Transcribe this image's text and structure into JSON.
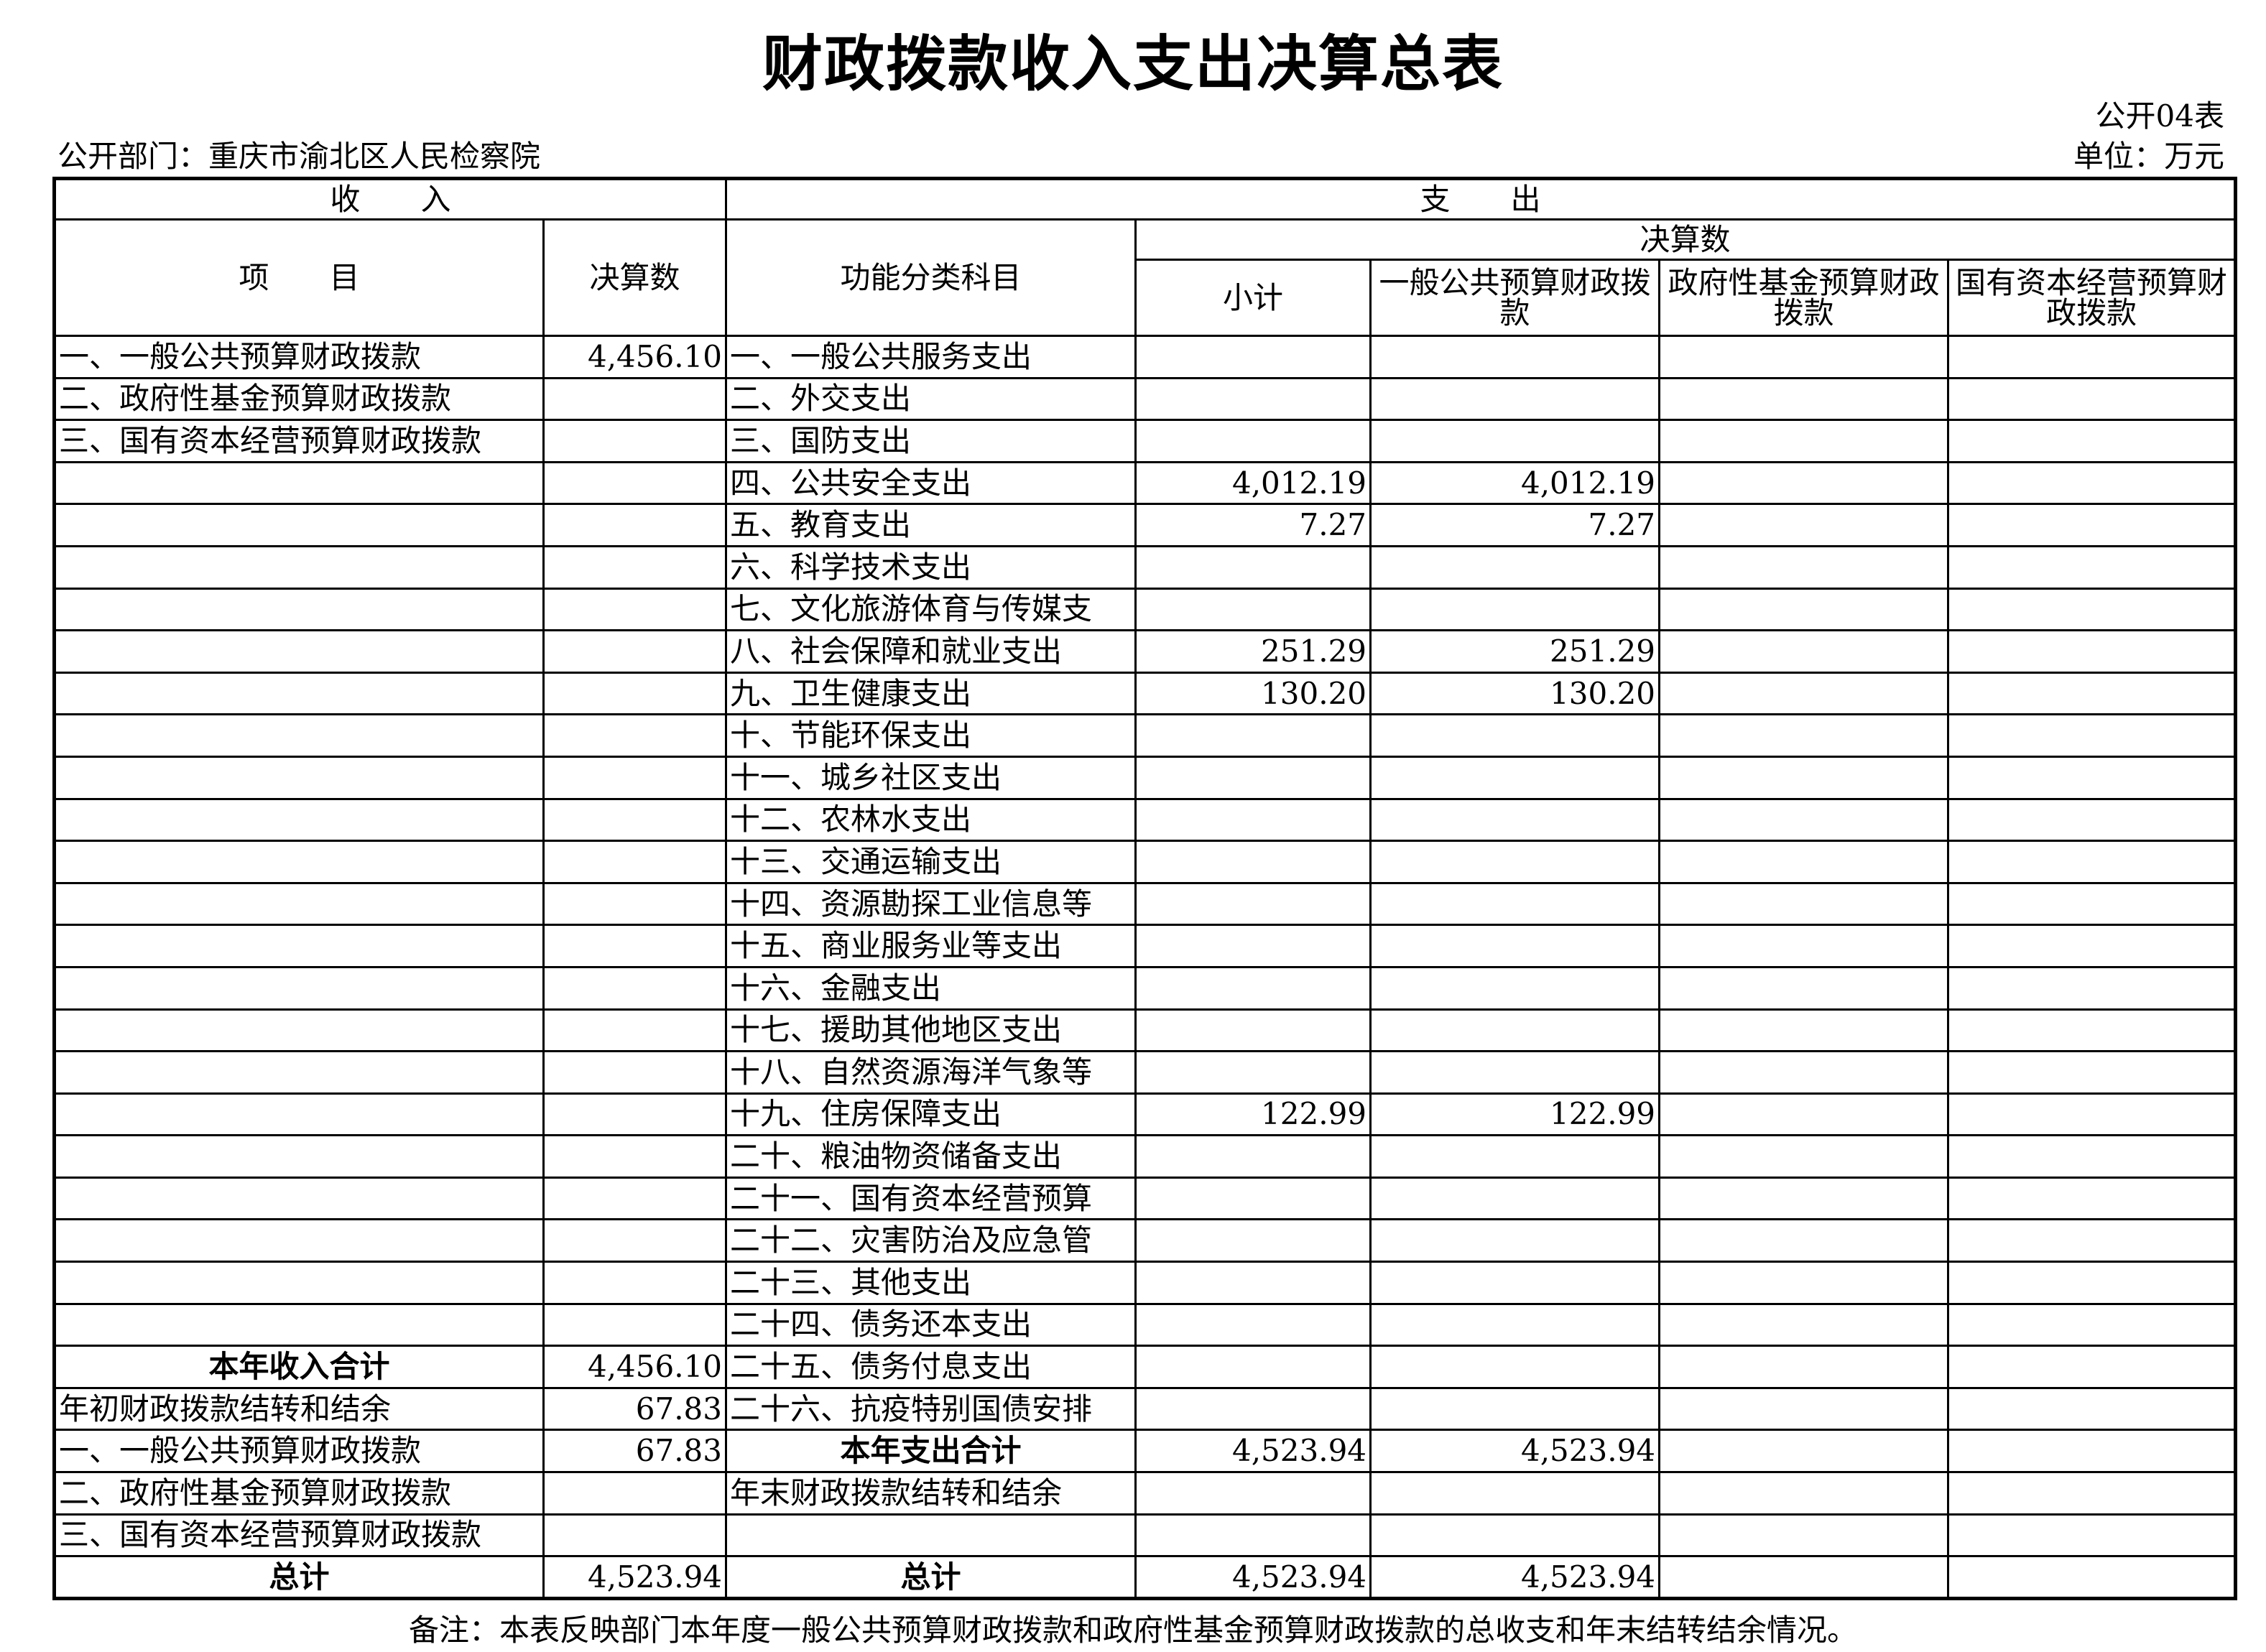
{
  "title": "财政拨款收入支出决算总表",
  "table_no": "公开04表",
  "department": "公开部门：重庆市渝北区人民检察院",
  "unit": "单位：万元",
  "header": {
    "income": "收　　入",
    "expense": "支　　出",
    "item": "项　　目",
    "amount": "决算数",
    "function_category": "功能分类科目",
    "final_amount": "决算数",
    "subtotal": "小计",
    "general_budget": "一般公共预算财政拨款",
    "gov_fund": "政府性基金预算财政拨款",
    "state_capital": "国有资本经营预算财政拨款"
  },
  "rows": [
    {
      "income_item": "一、一般公共预算财政拨款",
      "income_amount": "4,456.10",
      "expense_item": "一、一般公共服务支出",
      "subtotal": "",
      "general": "",
      "fund": "",
      "state": ""
    },
    {
      "income_item": "二、政府性基金预算财政拨款",
      "income_amount": "",
      "expense_item": "二、外交支出",
      "subtotal": "",
      "general": "",
      "fund": "",
      "state": ""
    },
    {
      "income_item": "三、国有资本经营预算财政拨款",
      "income_amount": "",
      "expense_item": "三、国防支出",
      "subtotal": "",
      "general": "",
      "fund": "",
      "state": ""
    },
    {
      "income_item": "",
      "income_amount": "",
      "expense_item": "四、公共安全支出",
      "subtotal": "4,012.19",
      "general": "4,012.19",
      "fund": "",
      "state": ""
    },
    {
      "income_item": "",
      "income_amount": "",
      "expense_item": "五、教育支出",
      "subtotal": "7.27",
      "general": "7.27",
      "fund": "",
      "state": ""
    },
    {
      "income_item": "",
      "income_amount": "",
      "expense_item": "六、科学技术支出",
      "subtotal": "",
      "general": "",
      "fund": "",
      "state": ""
    },
    {
      "income_item": "",
      "income_amount": "",
      "expense_item": "七、文化旅游体育与传媒支",
      "subtotal": "",
      "general": "",
      "fund": "",
      "state": ""
    },
    {
      "income_item": "",
      "income_amount": "",
      "expense_item": "八、社会保障和就业支出",
      "subtotal": "251.29",
      "general": "251.29",
      "fund": "",
      "state": ""
    },
    {
      "income_item": "",
      "income_amount": "",
      "expense_item": "九、卫生健康支出",
      "subtotal": "130.20",
      "general": "130.20",
      "fund": "",
      "state": ""
    },
    {
      "income_item": "",
      "income_amount": "",
      "expense_item": "十、节能环保支出",
      "subtotal": "",
      "general": "",
      "fund": "",
      "state": ""
    },
    {
      "income_item": "",
      "income_amount": "",
      "expense_item": "十一、城乡社区支出",
      "subtotal": "",
      "general": "",
      "fund": "",
      "state": ""
    },
    {
      "income_item": "",
      "income_amount": "",
      "expense_item": "十二、农林水支出",
      "subtotal": "",
      "general": "",
      "fund": "",
      "state": ""
    },
    {
      "income_item": "",
      "income_amount": "",
      "expense_item": "十三、交通运输支出",
      "subtotal": "",
      "general": "",
      "fund": "",
      "state": ""
    },
    {
      "income_item": "",
      "income_amount": "",
      "expense_item": "十四、资源勘探工业信息等",
      "subtotal": "",
      "general": "",
      "fund": "",
      "state": ""
    },
    {
      "income_item": "",
      "income_amount": "",
      "expense_item": "十五、商业服务业等支出",
      "subtotal": "",
      "general": "",
      "fund": "",
      "state": ""
    },
    {
      "income_item": "",
      "income_amount": "",
      "expense_item": "十六、金融支出",
      "subtotal": "",
      "general": "",
      "fund": "",
      "state": ""
    },
    {
      "income_item": "",
      "income_amount": "",
      "expense_item": "十七、援助其他地区支出",
      "subtotal": "",
      "general": "",
      "fund": "",
      "state": ""
    },
    {
      "income_item": "",
      "income_amount": "",
      "expense_item": "十八、自然资源海洋气象等",
      "subtotal": "",
      "general": "",
      "fund": "",
      "state": ""
    },
    {
      "income_item": "",
      "income_amount": "",
      "expense_item": "十九、住房保障支出",
      "subtotal": "122.99",
      "general": "122.99",
      "fund": "",
      "state": ""
    },
    {
      "income_item": "",
      "income_amount": "",
      "expense_item": "二十、粮油物资储备支出",
      "subtotal": "",
      "general": "",
      "fund": "",
      "state": ""
    },
    {
      "income_item": "",
      "income_amount": "",
      "expense_item": "二十一、国有资本经营预算",
      "subtotal": "",
      "general": "",
      "fund": "",
      "state": ""
    },
    {
      "income_item": "",
      "income_amount": "",
      "expense_item": "二十二、灾害防治及应急管",
      "subtotal": "",
      "general": "",
      "fund": "",
      "state": ""
    },
    {
      "income_item": "",
      "income_amount": "",
      "expense_item": "二十三、其他支出",
      "subtotal": "",
      "general": "",
      "fund": "",
      "state": ""
    },
    {
      "income_item": "",
      "income_amount": "",
      "expense_item": "二十四、债务还本支出",
      "subtotal": "",
      "general": "",
      "fund": "",
      "state": ""
    },
    {
      "income_item": "本年收入合计",
      "income_amount": "4,456.10",
      "expense_item": "二十五、债务付息支出",
      "subtotal": "",
      "general": "",
      "fund": "",
      "state": ""
    },
    {
      "income_item": "年初财政拨款结转和结余",
      "income_amount": "67.83",
      "expense_item": "二十六、抗疫特别国债安排",
      "subtotal": "",
      "general": "",
      "fund": "",
      "state": ""
    },
    {
      "income_item": "一、一般公共预算财政拨款",
      "income_amount": "67.83",
      "expense_item": "本年支出合计",
      "subtotal": "4,523.94",
      "general": "4,523.94",
      "fund": "",
      "state": ""
    },
    {
      "income_item": "二、政府性基金预算财政拨款",
      "income_amount": "",
      "expense_item": "年末财政拨款结转和结余",
      "subtotal": "",
      "general": "",
      "fund": "",
      "state": ""
    },
    {
      "income_item": "三、国有资本经营预算财政拨款",
      "income_amount": "",
      "expense_item": "",
      "subtotal": "",
      "general": "",
      "fund": "",
      "state": ""
    },
    {
      "income_item": "总计",
      "income_amount": "4,523.94",
      "expense_item": "总计",
      "subtotal": "4,523.94",
      "general": "4,523.94",
      "fund": "",
      "state": ""
    }
  ],
  "note": "备注：本表反映部门本年度一般公共预算财政拨款和政府性基金预算财政拨款的总收支和年末结转结余情况。"
}
